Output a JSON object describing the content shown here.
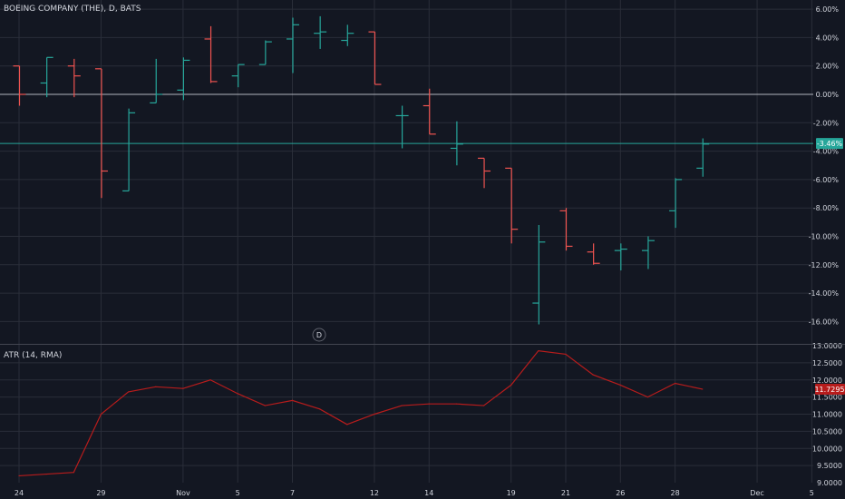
{
  "symbol_title": "BOEING COMPANY (THE), D, BATS",
  "atr_title": "ATR (14, RMA)",
  "day_marker": "D",
  "colors": {
    "background": "#131722",
    "grid": "#2a2e39",
    "up": "#26a69a",
    "down": "#ef5350",
    "atr_line": "#b71c1c",
    "zero_line": "#b2b5be",
    "last_line": "#26a69a"
  },
  "chart_data": [
    {
      "type": "ohlc",
      "title": "BOEING COMPANY (THE), D, BATS",
      "y_unit": "percent",
      "ylim": [
        -16.5,
        6.5
      ],
      "y_ticks": [
        6,
        4,
        2,
        0,
        -2,
        -4,
        -6,
        -8,
        -10,
        -12,
        -14,
        -16
      ],
      "y_tick_labels": [
        "6.00%",
        "4.00%",
        "2.00%",
        "0.00%",
        "-2.00%",
        "-4.00%",
        "-6.00%",
        "-8.00%",
        "-10.00%",
        "-12.00%",
        "-14.00%",
        "-16.00%"
      ],
      "last_value_label": "-3.46%",
      "last_value": -3.46,
      "zero_line": 0,
      "x_tick_labels": [
        {
          "label": "24",
          "index": 0
        },
        {
          "label": "29",
          "index": 3
        },
        {
          "label": "Nov",
          "index": 6
        },
        {
          "label": "5",
          "index": 8
        },
        {
          "label": "7",
          "index": 10
        },
        {
          "label": "12",
          "index": 13
        },
        {
          "label": "14",
          "index": 15
        },
        {
          "label": "19",
          "index": 18
        },
        {
          "label": "21",
          "index": 20
        },
        {
          "label": "26",
          "index": 22
        },
        {
          "label": "28",
          "index": 24
        },
        {
          "label": "Dec",
          "index": 27
        },
        {
          "label": "5",
          "index": 29
        }
      ],
      "bars": [
        {
          "open": 2.0,
          "high": 2.0,
          "low": -0.8,
          "close": 0.0
        },
        {
          "open": 0.8,
          "high": 2.6,
          "low": -0.2,
          "close": 2.6
        },
        {
          "open": 2.0,
          "high": 2.5,
          "low": -0.2,
          "close": 1.3
        },
        {
          "open": 1.8,
          "high": 1.8,
          "low": -7.3,
          "close": -5.4
        },
        {
          "open": -6.8,
          "high": -1.0,
          "low": -6.8,
          "close": -1.3
        },
        {
          "open": -0.6,
          "high": 2.5,
          "low": -0.6,
          "close": 0.0
        },
        {
          "open": 0.3,
          "high": 2.6,
          "low": -0.4,
          "close": 2.4
        },
        {
          "open": 3.9,
          "high": 4.8,
          "low": 0.8,
          "close": 0.9
        },
        {
          "open": 1.3,
          "high": 2.1,
          "low": 0.5,
          "close": 2.1
        },
        {
          "open": 2.1,
          "high": 3.8,
          "low": 2.1,
          "close": 3.7
        },
        {
          "open": 3.9,
          "high": 5.4,
          "low": 1.5,
          "close": 4.9
        },
        {
          "open": 4.3,
          "high": 5.5,
          "low": 3.2,
          "close": 4.4
        },
        {
          "open": 3.8,
          "high": 4.9,
          "low": 3.4,
          "close": 4.3
        },
        {
          "open": 4.4,
          "high": 4.4,
          "low": 0.7,
          "close": 0.7
        },
        {
          "open": -1.5,
          "high": -0.8,
          "low": -3.8,
          "close": -1.5
        },
        {
          "open": -0.8,
          "high": 0.4,
          "low": -2.8,
          "close": -2.8
        },
        {
          "open": -3.8,
          "high": -1.9,
          "low": -5.0,
          "close": -3.5
        },
        {
          "open": -4.5,
          "high": -4.5,
          "low": -6.6,
          "close": -5.4
        },
        {
          "open": -5.2,
          "high": -5.2,
          "low": -10.5,
          "close": -9.5
        },
        {
          "open": -14.7,
          "high": -9.2,
          "low": -16.2,
          "close": -10.4
        },
        {
          "open": -8.2,
          "high": -8.0,
          "low": -11.0,
          "close": -10.7
        },
        {
          "open": -11.1,
          "high": -10.5,
          "low": -12.0,
          "close": -11.9
        },
        {
          "open": -11.0,
          "high": -10.5,
          "low": -12.4,
          "close": -10.9
        },
        {
          "open": -11.0,
          "high": -10.0,
          "low": -12.3,
          "close": -10.3
        },
        {
          "open": -8.2,
          "high": -5.9,
          "low": -9.4,
          "close": -6.0
        },
        {
          "open": -5.2,
          "high": -3.1,
          "low": -5.8,
          "close": -3.5
        }
      ]
    },
    {
      "type": "line",
      "title": "ATR (14, RMA)",
      "ylim": [
        9.0,
        13.0
      ],
      "y_ticks": [
        13.0,
        12.5,
        12.0,
        11.5,
        11.0,
        10.5,
        10.0,
        9.5,
        9.0
      ],
      "y_tick_labels": [
        "13.0000",
        "12.5000",
        "12.0000",
        "11.5000",
        "11.0000",
        "10.5000",
        "10.0000",
        "9.5000",
        "9.0000"
      ],
      "last_value_label": "11.7295",
      "last_value": 11.7295,
      "values": [
        9.2,
        9.25,
        9.3,
        11.0,
        11.65,
        11.8,
        11.75,
        12.0,
        11.6,
        11.25,
        11.4,
        11.15,
        10.7,
        11.0,
        11.25,
        11.3,
        11.3,
        11.25,
        11.85,
        12.85,
        12.75,
        12.15,
        11.85,
        11.5,
        11.9,
        11.73
      ]
    }
  ]
}
